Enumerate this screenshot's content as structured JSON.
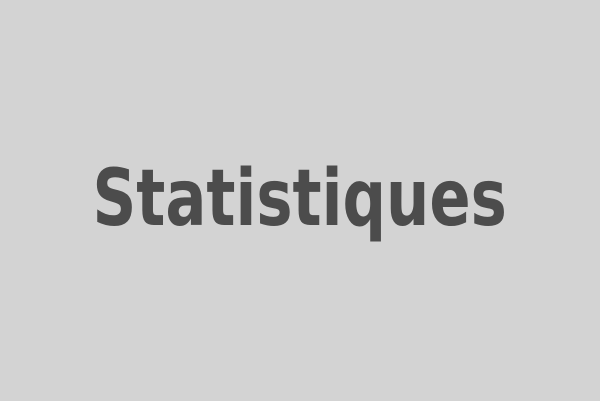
{
  "placeholder": {
    "text": "Statistiques",
    "background_color": "#d3d3d3",
    "text_color": "#4c4c4c"
  }
}
